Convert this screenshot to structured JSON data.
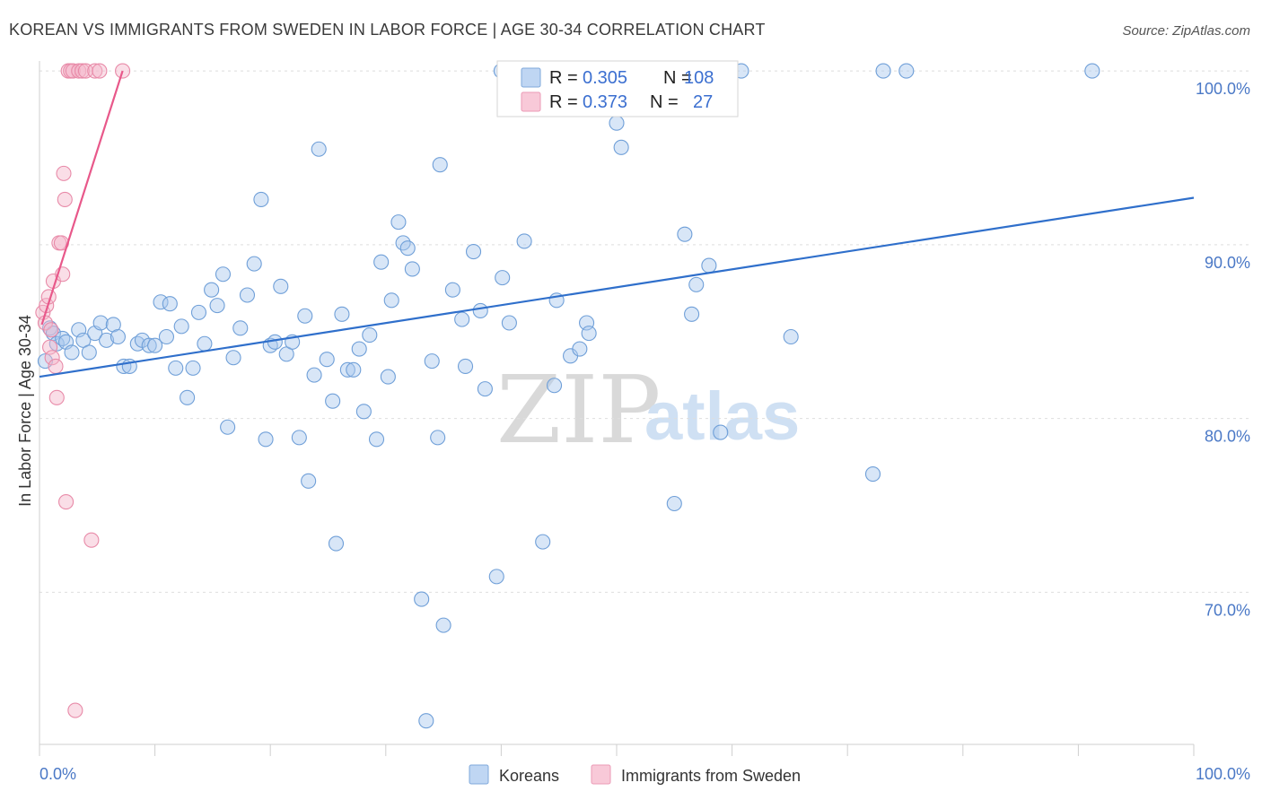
{
  "chart_data": {
    "type": "scatter",
    "title": "KOREAN VS IMMIGRANTS FROM SWEDEN IN LABOR FORCE | AGE 30-34 CORRELATION CHART",
    "source": "Source: ZipAtlas.com",
    "ylabel": "In Labor Force | Age 30-34",
    "xlim": [
      0,
      100
    ],
    "ylim": [
      61.5,
      101.5
    ],
    "y_ticks": [
      {
        "value": 70,
        "label": "70.0%"
      },
      {
        "value": 80,
        "label": "80.0%"
      },
      {
        "value": 90,
        "label": "90.0%"
      },
      {
        "value": 100,
        "label": "100.0%"
      }
    ],
    "x_ticks": [
      {
        "value": 0,
        "label": "0.0%"
      },
      {
        "value": 100,
        "label": "100.0%"
      }
    ],
    "watermark": {
      "zip": "ZIP",
      "atlas": "atlas"
    },
    "legend_stats": [
      {
        "r_label": "R = ",
        "r_value": "0.305",
        "n_label": "N = ",
        "n_value": "108"
      },
      {
        "r_label": "R = ",
        "r_value": "0.373",
        "n_label": "N = ",
        "n_value": "27"
      }
    ],
    "series": [
      {
        "name": "Koreans",
        "color": "#a8c8ee",
        "stroke": "#6f9fd8",
        "line_color": "#2f6fcb",
        "trend": {
          "x": [
            0,
            100
          ],
          "y": [
            82.4,
            92.7
          ]
        },
        "points": [
          [
            0.5,
            83.3
          ],
          [
            0.9,
            85.2
          ],
          [
            1.2,
            84.9
          ],
          [
            1.5,
            84.3
          ],
          [
            2.0,
            84.6
          ],
          [
            2.3,
            84.4
          ],
          [
            2.8,
            83.8
          ],
          [
            3.4,
            85.1
          ],
          [
            3.8,
            84.5
          ],
          [
            4.3,
            83.8
          ],
          [
            4.8,
            84.9
          ],
          [
            5.3,
            85.5
          ],
          [
            5.8,
            84.5
          ],
          [
            6.4,
            85.4
          ],
          [
            6.8,
            84.7
          ],
          [
            7.3,
            83.0
          ],
          [
            7.8,
            83.0
          ],
          [
            8.5,
            84.3
          ],
          [
            8.9,
            84.5
          ],
          [
            9.5,
            84.2
          ],
          [
            10.0,
            84.2
          ],
          [
            10.5,
            86.7
          ],
          [
            11.0,
            84.7
          ],
          [
            11.3,
            86.6
          ],
          [
            11.8,
            82.9
          ],
          [
            12.3,
            85.3
          ],
          [
            12.8,
            81.2
          ],
          [
            13.3,
            82.9
          ],
          [
            13.8,
            86.1
          ],
          [
            14.3,
            84.3
          ],
          [
            14.9,
            87.4
          ],
          [
            15.4,
            86.5
          ],
          [
            15.9,
            88.3
          ],
          [
            16.3,
            79.5
          ],
          [
            16.8,
            83.5
          ],
          [
            17.4,
            85.2
          ],
          [
            18.0,
            87.1
          ],
          [
            18.6,
            88.9
          ],
          [
            19.2,
            92.6
          ],
          [
            19.6,
            78.8
          ],
          [
            20.0,
            84.2
          ],
          [
            20.4,
            84.4
          ],
          [
            20.9,
            87.6
          ],
          [
            21.4,
            83.7
          ],
          [
            21.9,
            84.4
          ],
          [
            22.5,
            78.9
          ],
          [
            23.0,
            85.9
          ],
          [
            23.3,
            76.4
          ],
          [
            23.8,
            82.5
          ],
          [
            24.2,
            95.5
          ],
          [
            24.9,
            83.4
          ],
          [
            25.4,
            81.0
          ],
          [
            25.7,
            72.8
          ],
          [
            26.2,
            86.0
          ],
          [
            26.7,
            82.8
          ],
          [
            27.2,
            82.8
          ],
          [
            27.7,
            84.0
          ],
          [
            28.1,
            80.4
          ],
          [
            28.6,
            84.8
          ],
          [
            29.2,
            78.8
          ],
          [
            29.6,
            89.0
          ],
          [
            30.2,
            82.4
          ],
          [
            30.5,
            86.8
          ],
          [
            31.1,
            91.3
          ],
          [
            31.5,
            90.1
          ],
          [
            31.9,
            89.8
          ],
          [
            32.3,
            88.6
          ],
          [
            33.1,
            69.6
          ],
          [
            33.5,
            62.6
          ],
          [
            34.0,
            83.3
          ],
          [
            34.5,
            78.9
          ],
          [
            34.7,
            94.6
          ],
          [
            35.0,
            68.1
          ],
          [
            35.8,
            87.4
          ],
          [
            36.6,
            85.7
          ],
          [
            36.9,
            83.0
          ],
          [
            37.6,
            89.6
          ],
          [
            38.2,
            86.2
          ],
          [
            38.6,
            81.7
          ],
          [
            39.6,
            70.9
          ],
          [
            40.1,
            88.1
          ],
          [
            40.7,
            85.5
          ],
          [
            42.0,
            90.2
          ],
          [
            43.6,
            72.9
          ],
          [
            44.6,
            81.9
          ],
          [
            44.8,
            86.8
          ],
          [
            46.0,
            83.6
          ],
          [
            46.8,
            84.0
          ],
          [
            47.4,
            85.5
          ],
          [
            47.6,
            84.9
          ],
          [
            48.6,
            98.0
          ],
          [
            49.3,
            100.0
          ],
          [
            50.0,
            97.0
          ],
          [
            50.4,
            95.6
          ],
          [
            50.8,
            100.0
          ],
          [
            55.0,
            75.1
          ],
          [
            55.9,
            90.6
          ],
          [
            56.5,
            86.0
          ],
          [
            56.9,
            87.7
          ],
          [
            58.0,
            88.8
          ],
          [
            59.0,
            79.2
          ],
          [
            60.8,
            100.0
          ],
          [
            65.1,
            84.7
          ],
          [
            72.2,
            76.8
          ],
          [
            73.1,
            100.0
          ],
          [
            75.1,
            100.0
          ],
          [
            91.2,
            100.0
          ],
          [
            40.0,
            100.0
          ]
        ]
      },
      {
        "name": "Immigrants from Sweden",
        "color": "#f5b6ca",
        "stroke": "#e88aa8",
        "line_color": "#e8588a",
        "trend": {
          "x": [
            0.2,
            7.2
          ],
          "y": [
            85.4,
            100.0
          ]
        },
        "points": [
          [
            0.3,
            86.1
          ],
          [
            0.5,
            85.5
          ],
          [
            0.6,
            86.5
          ],
          [
            0.8,
            87.0
          ],
          [
            0.9,
            84.1
          ],
          [
            1.0,
            85.1
          ],
          [
            1.1,
            83.5
          ],
          [
            1.2,
            87.9
          ],
          [
            1.4,
            83.0
          ],
          [
            1.5,
            81.2
          ],
          [
            1.7,
            90.1
          ],
          [
            1.9,
            90.1
          ],
          [
            2.0,
            88.3
          ],
          [
            2.1,
            94.1
          ],
          [
            2.2,
            92.6
          ],
          [
            2.3,
            75.2
          ],
          [
            2.5,
            100.0
          ],
          [
            2.7,
            100.0
          ],
          [
            2.9,
            100.0
          ],
          [
            3.1,
            63.2
          ],
          [
            3.4,
            100.0
          ],
          [
            3.7,
            100.0
          ],
          [
            4.0,
            100.0
          ],
          [
            4.5,
            73.0
          ],
          [
            4.8,
            100.0
          ],
          [
            5.2,
            100.0
          ],
          [
            7.2,
            100.0
          ]
        ]
      }
    ]
  }
}
